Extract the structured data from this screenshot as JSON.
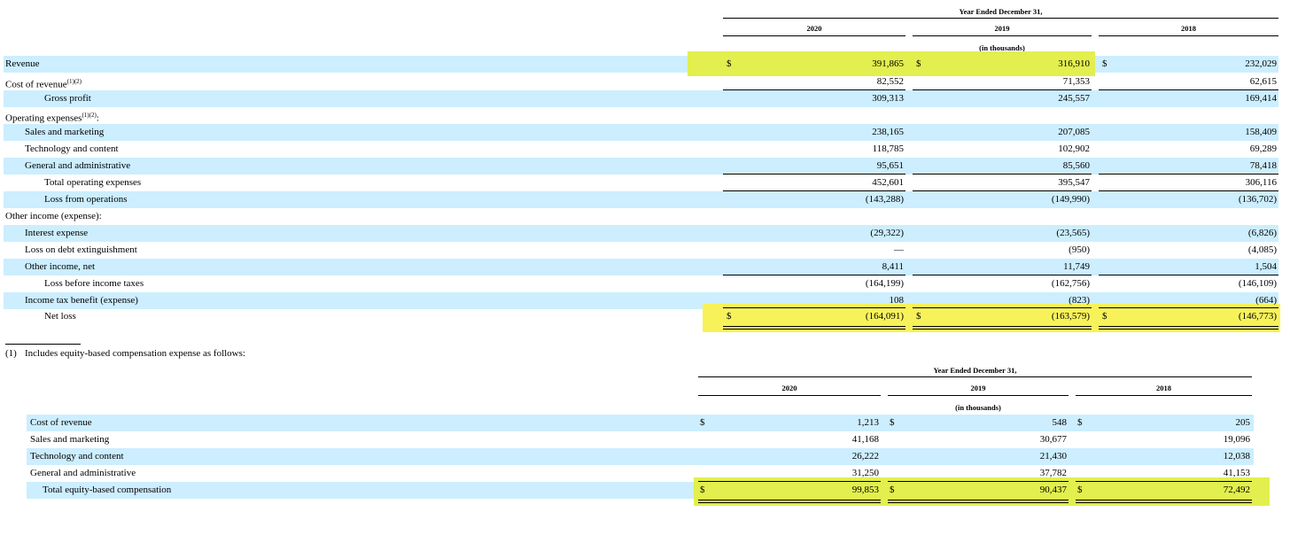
{
  "table1": {
    "group_header": "Year Ended December 31,",
    "years": [
      "2020",
      "2019",
      "2018"
    ],
    "units": "(in thousands)",
    "rows": [
      {
        "label": "Revenue",
        "sup": "",
        "indent": 0,
        "dollar": true,
        "values": [
          "391,865",
          "316,910",
          "232,029"
        ]
      },
      {
        "label": "Cost of revenue",
        "sup": "(1)(2)",
        "indent": 0,
        "dollar": false,
        "values": [
          "82,552",
          "71,353",
          "62,615"
        ]
      },
      {
        "label": "Gross profit",
        "sup": "",
        "indent": 2,
        "dollar": false,
        "values": [
          "309,313",
          "245,557",
          "169,414"
        ]
      },
      {
        "label": "Operating expenses",
        "sup": "(1)(2)",
        "suffix": ":",
        "indent": 0,
        "dollar": false,
        "values": []
      },
      {
        "label": "Sales and marketing",
        "sup": "",
        "indent": 1,
        "dollar": false,
        "values": [
          "238,165",
          "207,085",
          "158,409"
        ]
      },
      {
        "label": "Technology and content",
        "sup": "",
        "indent": 1,
        "dollar": false,
        "values": [
          "118,785",
          "102,902",
          "69,289"
        ]
      },
      {
        "label": "General and administrative",
        "sup": "",
        "indent": 1,
        "dollar": false,
        "values": [
          "95,651",
          "85,560",
          "78,418"
        ]
      },
      {
        "label": "Total operating expenses",
        "sup": "",
        "indent": 2,
        "dollar": false,
        "values": [
          "452,601",
          "395,547",
          "306,116"
        ]
      },
      {
        "label": "Loss from operations",
        "sup": "",
        "indent": 2,
        "dollar": false,
        "values": [
          "(143,288)",
          "(149,990)",
          "(136,702)"
        ]
      },
      {
        "label": "Other income (expense):",
        "sup": "",
        "indent": 0,
        "dollar": false,
        "values": []
      },
      {
        "label": "Interest expense",
        "sup": "",
        "indent": 1,
        "dollar": false,
        "values": [
          "(29,322)",
          "(23,565)",
          "(6,826)"
        ]
      },
      {
        "label": "Loss on debt extinguishment",
        "sup": "",
        "indent": 1,
        "dollar": false,
        "values": [
          "—",
          "(950)",
          "(4,085)"
        ]
      },
      {
        "label": "Other income, net",
        "sup": "",
        "indent": 1,
        "dollar": false,
        "values": [
          "8,411",
          "11,749",
          "1,504"
        ]
      },
      {
        "label": "Loss before income taxes",
        "sup": "",
        "indent": 2,
        "dollar": false,
        "values": [
          "(164,199)",
          "(162,756)",
          "(146,109)"
        ]
      },
      {
        "label": "Income tax benefit (expense)",
        "sup": "",
        "indent": 1,
        "dollar": false,
        "values": [
          "108",
          "(823)",
          "(664)"
        ]
      },
      {
        "label": "Net loss",
        "sup": "",
        "indent": 2,
        "dollar": true,
        "values": [
          "(164,091)",
          "(163,579)",
          "(146,773)"
        ]
      }
    ]
  },
  "footnote": {
    "marker": "(1)",
    "text": "Includes equity-based compensation expense as follows:"
  },
  "table2": {
    "group_header": "Year Ended December 31,",
    "years": [
      "2020",
      "2019",
      "2018"
    ],
    "units": "(in thousands)",
    "rows": [
      {
        "label": "Cost of revenue",
        "indent": 0,
        "dollar": true,
        "values": [
          "1,213",
          "548",
          "205"
        ]
      },
      {
        "label": "Sales and marketing",
        "indent": 0,
        "dollar": false,
        "values": [
          "41,168",
          "30,677",
          "19,096"
        ]
      },
      {
        "label": "Technology and content",
        "indent": 0,
        "dollar": false,
        "values": [
          "26,222",
          "21,430",
          "12,038"
        ]
      },
      {
        "label": "General and administrative",
        "indent": 0,
        "dollar": false,
        "values": [
          "31,250",
          "37,782",
          "41,153"
        ]
      },
      {
        "label": "Total equity-based compensation",
        "indent": 1,
        "dollar": true,
        "values": [
          "99,853",
          "90,437",
          "72,492"
        ]
      }
    ]
  },
  "dollar_sign": "$"
}
